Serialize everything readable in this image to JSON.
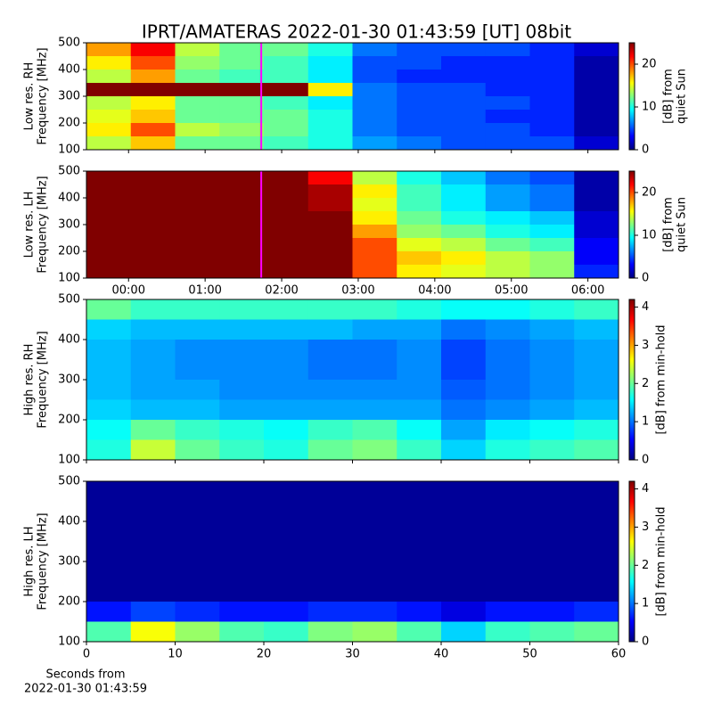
{
  "title": "IPRT/AMATERAS 2022-01-30 01:43:59 [UT]   08bit",
  "chart_data": [
    {
      "type": "heatmap",
      "ylabel": [
        "Low res. RH",
        "Frequency [MHz]"
      ],
      "xlim": [
        -0.55,
        6.4
      ],
      "xticks": [
        0,
        1,
        2,
        3,
        4,
        5,
        6
      ],
      "show_xticklabels": false,
      "ylim": [
        100,
        500
      ],
      "yticks": [
        100,
        200,
        300,
        400,
        500
      ],
      "marker_x": 1.733,
      "marker_color": "#ff00ff",
      "colorbar": {
        "label": [
          "[dB] from",
          "quiet Sun"
        ],
        "clim": [
          0,
          25
        ],
        "ticks": [
          0,
          10,
          20
        ],
        "colormap": "jet"
      },
      "z": [
        [
          18,
          22,
          14,
          12,
          12,
          10,
          6,
          5,
          5,
          5,
          4,
          2
        ],
        [
          16,
          20,
          13,
          12,
          11,
          9,
          5,
          5,
          4,
          4,
          4,
          1
        ],
        [
          14,
          18,
          12,
          11,
          11,
          9,
          5,
          4,
          4,
          4,
          4,
          1
        ],
        [
          25,
          25,
          25,
          25,
          25,
          16,
          6,
          5,
          5,
          4,
          4,
          1
        ],
        [
          14,
          16,
          12,
          12,
          11,
          9,
          6,
          5,
          5,
          5,
          4,
          1
        ],
        [
          15,
          17,
          12,
          12,
          12,
          10,
          6,
          5,
          5,
          4,
          4,
          1
        ],
        [
          16,
          20,
          14,
          13,
          12,
          10,
          6,
          5,
          5,
          5,
          4,
          1
        ],
        [
          14,
          17,
          12,
          12,
          11,
          10,
          7,
          6,
          5,
          5,
          5,
          2
        ]
      ]
    },
    {
      "type": "heatmap",
      "ylabel": [
        "Low res. LH",
        "Frequency [MHz]"
      ],
      "xlim": [
        -0.55,
        6.4
      ],
      "xticks": [
        {
          "value": 0,
          "label": "00:00"
        },
        {
          "value": 1,
          "label": "01:00"
        },
        {
          "value": 2,
          "label": "02:00"
        },
        {
          "value": 3,
          "label": "03:00"
        },
        {
          "value": 4,
          "label": "04:00"
        },
        {
          "value": 5,
          "label": "05:00"
        },
        {
          "value": 6,
          "label": "06:00"
        }
      ],
      "show_xticklabels": true,
      "ylim": [
        100,
        500
      ],
      "yticks": [
        100,
        200,
        300,
        400,
        500
      ],
      "marker_x": 1.733,
      "marker_color": "#ff00ff",
      "colorbar": {
        "label": [
          "[dB] from",
          "quiet Sun"
        ],
        "clim": [
          0,
          25
        ],
        "ticks": [
          0,
          10,
          20
        ],
        "colormap": "jet"
      },
      "z": [
        [
          25,
          25,
          25,
          25,
          25,
          22,
          14,
          10,
          8,
          6,
          5,
          1
        ],
        [
          25,
          25,
          25,
          25,
          25,
          24,
          16,
          11,
          9,
          7,
          6,
          1
        ],
        [
          25,
          25,
          25,
          25,
          25,
          24,
          15,
          11,
          9,
          7,
          6,
          1
        ],
        [
          25,
          25,
          25,
          25,
          25,
          25,
          16,
          12,
          10,
          9,
          8,
          2
        ],
        [
          25,
          25,
          25,
          25,
          25,
          25,
          18,
          13,
          12,
          10,
          9,
          2
        ],
        [
          25,
          25,
          25,
          25,
          25,
          25,
          20,
          15,
          14,
          12,
          11,
          3
        ],
        [
          25,
          25,
          25,
          25,
          25,
          25,
          20,
          17,
          16,
          14,
          13,
          3
        ],
        [
          25,
          25,
          25,
          25,
          25,
          25,
          20,
          16,
          15,
          14,
          13,
          4
        ]
      ]
    },
    {
      "type": "heatmap",
      "ylabel": [
        "High res. RH",
        "Frequency [MHz]"
      ],
      "xlim": [
        0,
        60
      ],
      "xticks": [
        0,
        10,
        20,
        30,
        40,
        50,
        60
      ],
      "show_xticklabels": false,
      "ylim": [
        100,
        500
      ],
      "yticks": [
        100,
        200,
        300,
        400,
        500
      ],
      "colorbar": {
        "label": [
          "[dB] from min-hold"
        ],
        "clim": [
          0,
          4.2
        ],
        "ticks": [
          0,
          1,
          2,
          3,
          4
        ],
        "colormap": "jet"
      },
      "z": [
        [
          2.0,
          1.8,
          1.8,
          1.8,
          1.8,
          1.8,
          1.8,
          1.7,
          1.6,
          1.6,
          1.7,
          1.8
        ],
        [
          1.4,
          1.3,
          1.3,
          1.3,
          1.3,
          1.3,
          1.2,
          1.2,
          1.0,
          1.1,
          1.2,
          1.3
        ],
        [
          1.3,
          1.2,
          1.1,
          1.1,
          1.1,
          1.0,
          1.0,
          1.1,
          0.8,
          1.0,
          1.1,
          1.2
        ],
        [
          1.3,
          1.2,
          1.1,
          1.1,
          1.1,
          1.0,
          1.0,
          1.1,
          0.8,
          1.0,
          1.1,
          1.2
        ],
        [
          1.3,
          1.2,
          1.2,
          1.1,
          1.1,
          1.1,
          1.1,
          1.1,
          0.9,
          1.0,
          1.1,
          1.2
        ],
        [
          1.4,
          1.3,
          1.3,
          1.2,
          1.2,
          1.2,
          1.2,
          1.2,
          1.0,
          1.1,
          1.2,
          1.3
        ],
        [
          1.6,
          2.0,
          1.8,
          1.7,
          1.6,
          1.8,
          1.9,
          1.6,
          1.2,
          1.5,
          1.6,
          1.7
        ],
        [
          1.7,
          2.4,
          2.0,
          1.8,
          1.7,
          2.0,
          2.1,
          1.8,
          1.4,
          1.7,
          1.8,
          1.9
        ]
      ]
    },
    {
      "type": "heatmap",
      "ylabel": [
        "High res. LH",
        "Frequency [MHz]"
      ],
      "xlabel": [
        "Seconds from",
        "2022-01-30 01:43:59"
      ],
      "xlim": [
        0,
        60
      ],
      "xticks": [
        0,
        10,
        20,
        30,
        40,
        50,
        60
      ],
      "show_xticklabels": true,
      "ylim": [
        100,
        500
      ],
      "yticks": [
        100,
        200,
        300,
        400,
        500
      ],
      "colorbar": {
        "label": [
          "[dB] from min-hold"
        ],
        "clim": [
          0,
          4.2
        ],
        "ticks": [
          0,
          1,
          2,
          3,
          4
        ],
        "colormap": "jet"
      },
      "z": [
        [
          0.1,
          0.1,
          0.1,
          0.1,
          0.1,
          0.1,
          0.1,
          0.1,
          0.1,
          0.1,
          0.1,
          0.1
        ],
        [
          0.1,
          0.1,
          0.1,
          0.1,
          0.1,
          0.1,
          0.1,
          0.1,
          0.1,
          0.1,
          0.1,
          0.1
        ],
        [
          0.1,
          0.1,
          0.1,
          0.1,
          0.1,
          0.1,
          0.1,
          0.1,
          0.1,
          0.1,
          0.1,
          0.1
        ],
        [
          0.1,
          0.1,
          0.1,
          0.1,
          0.1,
          0.1,
          0.1,
          0.1,
          0.1,
          0.1,
          0.1,
          0.1
        ],
        [
          0.1,
          0.1,
          0.1,
          0.1,
          0.1,
          0.1,
          0.1,
          0.1,
          0.1,
          0.1,
          0.1,
          0.1
        ],
        [
          0.1,
          0.1,
          0.1,
          0.1,
          0.1,
          0.1,
          0.1,
          0.1,
          0.1,
          0.1,
          0.1,
          0.1
        ],
        [
          0.6,
          0.8,
          0.7,
          0.6,
          0.6,
          0.7,
          0.7,
          0.6,
          0.4,
          0.6,
          0.6,
          0.7
        ],
        [
          1.9,
          2.6,
          2.2,
          1.9,
          1.8,
          2.1,
          2.2,
          1.9,
          1.4,
          1.8,
          1.9,
          2.0
        ]
      ]
    }
  ]
}
